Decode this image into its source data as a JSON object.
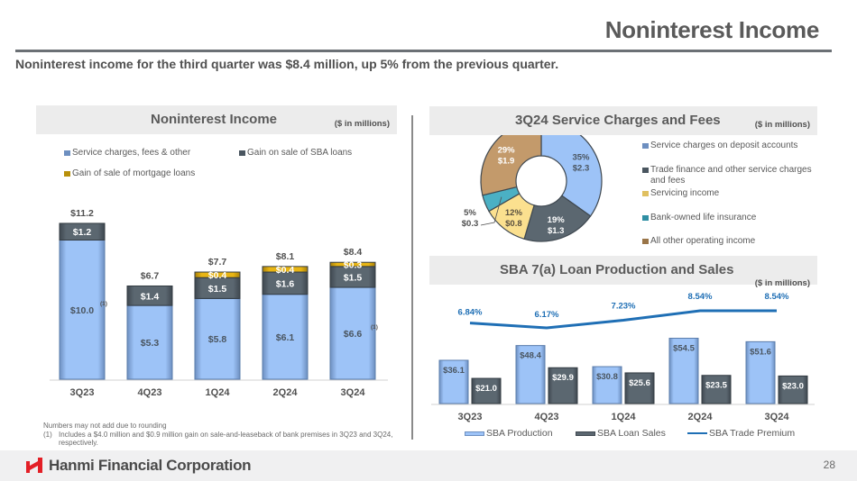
{
  "header": {
    "title": "Noninterest Income",
    "subtitle": "Noninterest income for the third quarter was $8.4 million, up 5% from the previous quarter."
  },
  "panels": {
    "left": {
      "title": "Noninterest Income",
      "unit": "($ in millions)"
    },
    "pie": {
      "title": "3Q24 Service Charges and Fees",
      "unit": "($ in millions)"
    },
    "sba": {
      "title": "SBA 7(a) Loan Production and Sales",
      "unit": "($ in millions)"
    }
  },
  "footnotes": {
    "rounding": "Numbers may not add due to rounding",
    "note1_num": "(1)",
    "note1_text": "Includes a $4.0 million and $0.9 million gain on sale-and-leaseback of bank premises in 3Q23 and 3Q24, respectively."
  },
  "footer": {
    "company": "Hanmi Financial Corporation",
    "page_number": "28",
    "logo_color": "#e31f26"
  },
  "chart_data": [
    {
      "type": "bar",
      "stacked": true,
      "title": "Noninterest Income",
      "ylabel": "$ in millions",
      "categories": [
        "3Q23",
        "4Q23",
        "1Q24",
        "2Q24",
        "3Q24"
      ],
      "series": [
        {
          "name": "Service charges, fees & other",
          "color": "#9dc3f7",
          "values": [
            10.0,
            5.3,
            5.8,
            6.1,
            6.6
          ],
          "labels": [
            "$10.0",
            "$5.3",
            "$5.8",
            "$6.1",
            "$6.6"
          ]
        },
        {
          "name": "Gain on sale of SBA loans",
          "color": "#5b6770",
          "values": [
            1.2,
            1.4,
            1.5,
            1.6,
            1.5
          ],
          "labels": [
            "$1.2",
            "$1.4",
            "$1.5",
            "$1.6",
            "$1.5"
          ]
        },
        {
          "name": "Gain of sale of mortgage loans",
          "color": "#d8a710",
          "values": [
            0,
            0,
            0.4,
            0.4,
            0.3
          ],
          "labels": [
            "",
            "",
            "$0.4",
            "$0.4",
            "$0.3"
          ]
        }
      ],
      "totals": [
        "$11.2",
        "$6.7",
        "$7.7",
        "$8.1",
        "$8.4"
      ],
      "footnote_markers": [
        {
          "category": "3Q23",
          "series": 0,
          "marker": "(1)"
        },
        {
          "category": "3Q24",
          "series": 0,
          "marker": "(1)"
        }
      ],
      "legend": "top"
    },
    {
      "type": "pie",
      "donut": true,
      "title": "3Q24 Service Charges and Fees",
      "slices": [
        {
          "name": "Service charges on deposit accounts",
          "value": 2.3,
          "pct": "35%",
          "label": "$2.3",
          "color": "#9dc3f7"
        },
        {
          "name": "Trade finance and other service charges and fees",
          "value": 1.3,
          "pct": "19%",
          "label": "$1.3",
          "color": "#5b6770"
        },
        {
          "name": "Servicing income",
          "value": 0.8,
          "pct": "12%",
          "label": "$0.8",
          "color": "#fbe08f"
        },
        {
          "name": "Bank-owned life insurance",
          "value": 0.3,
          "pct": "5%",
          "label": "$0.3",
          "color": "#4bb0c4"
        },
        {
          "name": "All other operating income",
          "value": 1.9,
          "pct": "29%",
          "label": "$1.9",
          "color": "#c39a6b"
        }
      ],
      "legend": "right"
    },
    {
      "type": "bar",
      "title": "SBA 7(a) Loan Production and Sales",
      "categories": [
        "3Q23",
        "4Q23",
        "1Q24",
        "2Q24",
        "3Q24"
      ],
      "series": [
        {
          "name": "SBA Production",
          "color": "#9dc3f7",
          "values": [
            36.1,
            48.4,
            30.8,
            54.5,
            51.6
          ],
          "labels": [
            "$36.1",
            "$48.4",
            "$30.8",
            "$54.5",
            "$51.6"
          ]
        },
        {
          "name": "SBA Loan Sales",
          "color": "#5b6770",
          "values": [
            21.0,
            29.9,
            25.6,
            23.5,
            23.0
          ],
          "labels": [
            "$21.0",
            "$29.9",
            "$25.6",
            "$23.5",
            "$23.0"
          ]
        }
      ],
      "line_series": {
        "name": "SBA Trade Premium",
        "color": "#1f6fb5",
        "values": [
          6.84,
          6.17,
          7.23,
          8.54,
          8.54
        ],
        "labels": [
          "6.84%",
          "6.17%",
          "7.23%",
          "8.54%",
          "8.54%"
        ]
      },
      "legend": "bottom"
    }
  ]
}
